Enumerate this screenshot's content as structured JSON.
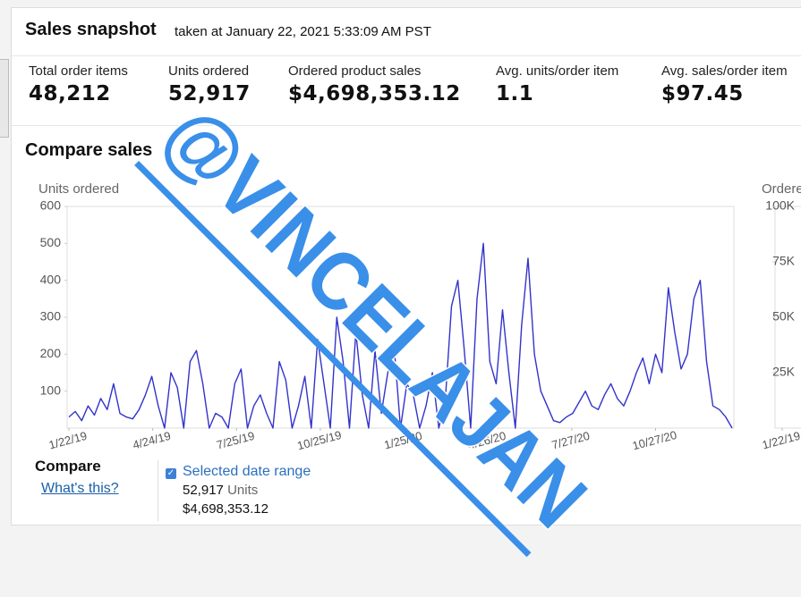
{
  "header": {
    "title": "Sales snapshot",
    "subtitle": "taken at January 22, 2021 5:33:09 AM PST"
  },
  "metrics": [
    {
      "label": "Total order items",
      "value": "48,212"
    },
    {
      "label": "Units ordered",
      "value": "52,917"
    },
    {
      "label": "Ordered product sales",
      "value": "$4,698,353.12"
    },
    {
      "label": "Avg. units/order item",
      "value": "1.1"
    },
    {
      "label": "Avg. sales/order item",
      "value": "$97.45"
    }
  ],
  "compare_title": "Compare sales",
  "watermark": "@VINCELAJAN",
  "legend": {
    "title": "Compare",
    "help_link": "What's this?",
    "series_name": "Selected date range",
    "units": "52,917",
    "units_label": "Units",
    "sales": "$4,698,353.12"
  },
  "chart_data": [
    {
      "type": "line",
      "y_label": "Units ordered",
      "ylim": [
        0,
        600
      ],
      "yticks": [
        100,
        200,
        300,
        400,
        500,
        600
      ],
      "xlim": [
        "2019-01-22",
        "2021-01-19"
      ],
      "xticks": [
        {
          "value": "2019-01-22",
          "label": "1/22/19"
        },
        {
          "value": "2019-04-24",
          "label": "4/24/19"
        },
        {
          "value": "2019-07-25",
          "label": "7/25/19"
        },
        {
          "value": "2019-10-25",
          "label": "10/25/19"
        },
        {
          "value": "2020-01-25",
          "label": "1/25/20"
        },
        {
          "value": "2020-04-26",
          "label": "4/26/20"
        },
        {
          "value": "2020-07-27",
          "label": "7/27/20"
        },
        {
          "value": "2020-10-27",
          "label": "10/27/20"
        }
      ],
      "x": [
        "2019-01-22",
        "2019-01-29",
        "2019-02-05",
        "2019-02-12",
        "2019-02-19",
        "2019-02-26",
        "2019-03-05",
        "2019-03-12",
        "2019-03-19",
        "2019-03-26",
        "2019-04-02",
        "2019-04-09",
        "2019-04-16",
        "2019-04-23",
        "2019-04-30",
        "2019-05-07",
        "2019-05-14",
        "2019-05-21",
        "2019-05-28",
        "2019-06-04",
        "2019-06-11",
        "2019-06-18",
        "2019-06-25",
        "2019-07-02",
        "2019-07-09",
        "2019-07-16",
        "2019-07-23",
        "2019-07-30",
        "2019-08-06",
        "2019-08-13",
        "2019-08-20",
        "2019-08-27",
        "2019-09-03",
        "2019-09-10",
        "2019-09-17",
        "2019-09-24",
        "2019-10-01",
        "2019-10-08",
        "2019-10-15",
        "2019-10-22",
        "2019-10-29",
        "2019-11-05",
        "2019-11-12",
        "2019-11-19",
        "2019-11-26",
        "2019-12-03",
        "2019-12-10",
        "2019-12-17",
        "2019-12-24",
        "2019-12-31",
        "2020-01-07",
        "2020-01-14",
        "2020-01-21",
        "2020-01-28",
        "2020-02-04",
        "2020-02-11",
        "2020-02-18",
        "2020-02-25",
        "2020-03-03",
        "2020-03-10",
        "2020-03-17",
        "2020-03-24",
        "2020-03-31",
        "2020-04-07",
        "2020-04-14",
        "2020-04-21",
        "2020-04-28",
        "2020-05-05",
        "2020-05-12",
        "2020-05-19",
        "2020-05-26",
        "2020-06-02",
        "2020-06-09",
        "2020-06-16",
        "2020-06-23",
        "2020-06-30",
        "2020-07-07",
        "2020-07-14",
        "2020-07-21",
        "2020-07-28",
        "2020-08-04",
        "2020-08-11",
        "2020-08-18",
        "2020-08-25",
        "2020-09-01",
        "2020-09-08",
        "2020-09-15",
        "2020-09-22",
        "2020-09-29",
        "2020-10-06",
        "2020-10-13",
        "2020-10-20",
        "2020-10-27",
        "2020-11-03",
        "2020-11-10",
        "2020-11-17",
        "2020-11-24",
        "2020-12-01",
        "2020-12-08",
        "2020-12-15",
        "2020-12-22",
        "2020-12-29",
        "2021-01-05",
        "2021-01-12",
        "2021-01-19"
      ],
      "series": [
        {
          "name": "Selected date range",
          "color": "#3333cc",
          "values": [
            30,
            45,
            20,
            60,
            35,
            80,
            50,
            120,
            40,
            30,
            25,
            50,
            90,
            140,
            60,
            0,
            150,
            110,
            0,
            180,
            210,
            120,
            0,
            40,
            30,
            0,
            120,
            160,
            0,
            60,
            90,
            40,
            0,
            180,
            130,
            0,
            60,
            140,
            0,
            240,
            120,
            0,
            300,
            180,
            0,
            260,
            90,
            0,
            210,
            40,
            150,
            220,
            0,
            120,
            90,
            0,
            60,
            150,
            0,
            70,
            330,
            400,
            210,
            0,
            350,
            500,
            180,
            120,
            320,
            150,
            0,
            280,
            460,
            200,
            100,
            60,
            20,
            15,
            30,
            40,
            70,
            100,
            60,
            50,
            90,
            120,
            80,
            60,
            100,
            150,
            190,
            120,
            200,
            150,
            380,
            260,
            160,
            200,
            350,
            400,
            180,
            60,
            50,
            30,
            0
          ]
        }
      ]
    },
    {
      "type": "line",
      "y_label": "Ordered product sales",
      "ylim": [
        0,
        100000
      ],
      "yticks": [
        {
          "value": 25000,
          "label": "25K"
        },
        {
          "value": 50000,
          "label": "50K"
        },
        {
          "value": 75000,
          "label": "75K"
        },
        {
          "value": 100000,
          "label": "100K"
        }
      ],
      "xticks": [
        {
          "value": "2019-01-22",
          "label": "1/22/19"
        }
      ]
    }
  ]
}
